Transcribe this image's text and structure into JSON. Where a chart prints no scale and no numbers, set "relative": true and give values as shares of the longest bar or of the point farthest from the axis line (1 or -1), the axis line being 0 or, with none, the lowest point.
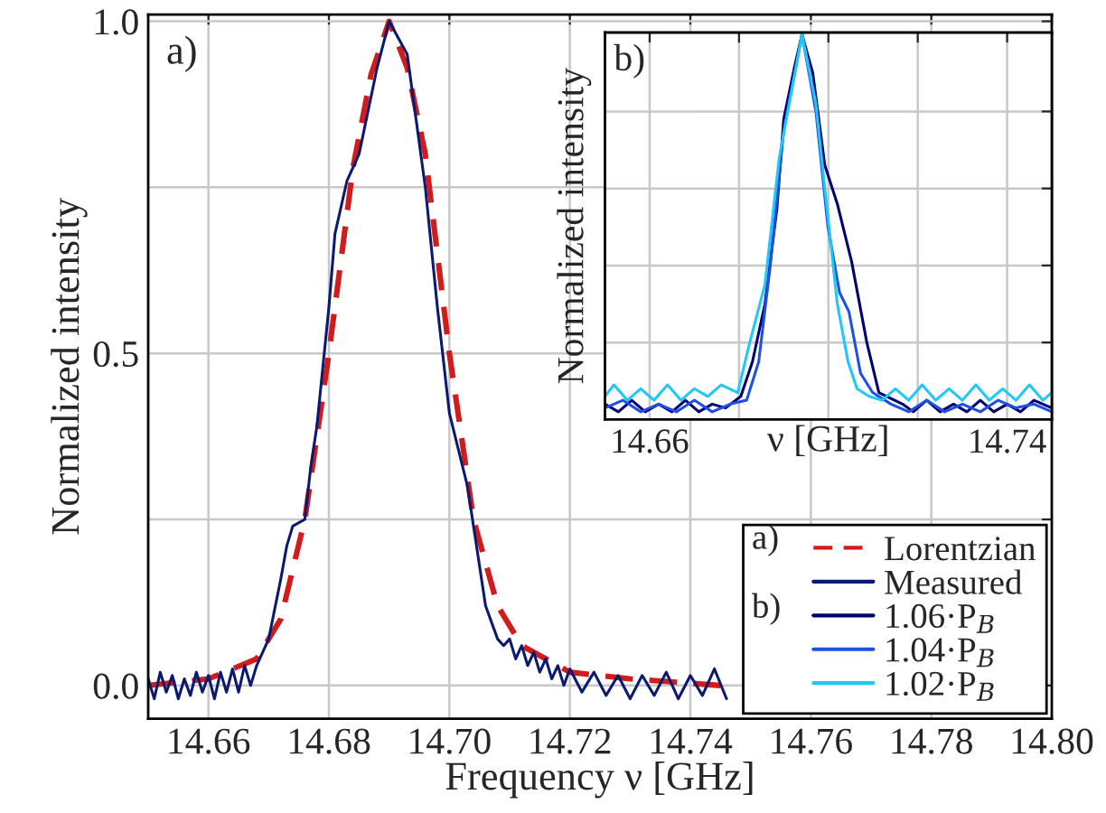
{
  "chart_data": [
    {
      "type": "line",
      "xlabel": "Frequency ν [GHz]",
      "ylabel": "Normalized intensity",
      "legend_title": "a)",
      "annotations": [
        "a)"
      ],
      "xlim": [
        14.65,
        14.8
      ],
      "xticks": [
        14.66,
        14.68,
        {
          "value": 14.7,
          "label": "14.70"
        },
        14.72,
        14.74,
        14.76,
        14.78,
        {
          "value": 14.8,
          "label": "14.80"
        }
      ],
      "ylim": [
        -0.05,
        1.01
      ],
      "yticks": [
        {
          "value": 0,
          "label": "0.0"
        },
        {
          "value": 0.25,
          "label": null
        },
        {
          "value": 0.5,
          "label": "0.5"
        },
        {
          "value": 0.75,
          "label": null
        },
        {
          "value": 1,
          "label": "1.0"
        }
      ],
      "grid": true,
      "legend": "bottom right",
      "series": [
        {
          "name": "Lorentzian",
          "color": "#d01c1c",
          "line_style": "dashed",
          "x": [
            14.65,
            14.66,
            14.668,
            14.672,
            14.676,
            14.68,
            14.684,
            14.687,
            14.69,
            14.693,
            14.696,
            14.7,
            14.704,
            14.708,
            14.712,
            14.72,
            14.73,
            14.745
          ],
          "values": [
            0.0,
            0.01,
            0.04,
            0.1,
            0.25,
            0.5,
            0.78,
            0.92,
            1.0,
            0.93,
            0.8,
            0.5,
            0.25,
            0.12,
            0.06,
            0.02,
            0.01,
            0.0
          ]
        },
        {
          "name": "Measured",
          "color": "#0b1a6e",
          "line_style": "solid",
          "x": [
            14.65,
            14.651,
            14.652,
            14.653,
            14.654,
            14.655,
            14.656,
            14.657,
            14.658,
            14.659,
            14.66,
            14.661,
            14.662,
            14.663,
            14.664,
            14.665,
            14.666,
            14.667,
            14.668,
            14.67,
            14.672,
            14.673,
            14.674,
            14.676,
            14.677,
            14.678,
            14.68,
            14.681,
            14.683,
            14.685,
            14.688,
            14.69,
            14.693,
            14.696,
            14.698,
            14.7,
            14.703,
            14.706,
            14.708,
            14.709,
            14.71,
            14.711,
            14.712,
            14.713,
            14.714,
            14.715,
            14.716,
            14.717,
            14.718,
            14.719,
            14.72,
            14.722,
            14.724,
            14.726,
            14.728,
            14.73,
            14.732,
            14.734,
            14.736,
            14.738,
            14.74,
            14.742,
            14.744,
            14.746
          ],
          "values": [
            0.01,
            -0.02,
            0.02,
            -0.01,
            0.015,
            -0.02,
            0.01,
            -0.015,
            0.02,
            -0.01,
            0.015,
            -0.02,
            0.02,
            -0.01,
            0.025,
            -0.01,
            0.03,
            0.0,
            0.03,
            0.07,
            0.16,
            0.21,
            0.24,
            0.25,
            0.33,
            0.39,
            0.57,
            0.68,
            0.76,
            0.8,
            0.93,
            1.0,
            0.95,
            0.75,
            0.57,
            0.41,
            0.3,
            0.12,
            0.07,
            0.06,
            0.07,
            0.04,
            0.06,
            0.03,
            0.05,
            0.02,
            0.04,
            0.01,
            0.03,
            0.0,
            0.025,
            -0.01,
            0.02,
            -0.015,
            0.015,
            -0.02,
            0.015,
            -0.015,
            0.02,
            -0.02,
            0.015,
            -0.015,
            0.025,
            -0.02
          ]
        }
      ]
    },
    {
      "type": "line",
      "xlabel": "ν [GHz]",
      "ylabel": "Normalized intensity",
      "legend_title": "b)",
      "annotations": [
        "b)"
      ],
      "relative": true,
      "xlim": [
        14.65,
        14.75
      ],
      "xticks": [
        14.66,
        {
          "value": 14.68,
          "label": null
        },
        {
          "value": 14.7,
          "label": null
        },
        {
          "value": 14.72,
          "label": null
        },
        14.74
      ],
      "grid": true,
      "legend": "bottom",
      "series": [
        {
          "name": "1.06·P$_{B}$",
          "color": "#000070",
          "x": [
            14.65,
            14.653,
            14.656,
            14.659,
            14.662,
            14.665,
            14.668,
            14.671,
            14.674,
            14.677,
            14.6804,
            14.683,
            14.6858,
            14.6885,
            14.69,
            14.6925,
            14.6941,
            14.6965,
            14.6992,
            14.702,
            14.7052,
            14.7086,
            14.7113,
            14.7166,
            14.719,
            14.722,
            14.725,
            14.728,
            14.731,
            14.734,
            14.737,
            14.74,
            14.743,
            14.746,
            14.75
          ],
          "values": [
            0.04,
            0.02,
            0.05,
            0.02,
            0.04,
            0.02,
            0.05,
            0.02,
            0.04,
            0.03,
            0.06,
            0.15,
            0.3,
            0.55,
            0.78,
            0.92,
            1.0,
            0.9,
            0.66,
            0.56,
            0.41,
            0.2,
            0.07,
            0.04,
            0.02,
            0.05,
            0.02,
            0.04,
            0.02,
            0.05,
            0.02,
            0.04,
            0.02,
            0.05,
            0.03
          ]
        },
        {
          "name": "1.04·P$_{B}$",
          "color": "#1e50e6",
          "x": [
            14.65,
            14.654,
            14.658,
            14.662,
            14.666,
            14.67,
            14.674,
            14.678,
            14.6817,
            14.6844,
            14.687,
            14.69,
            14.6941,
            14.6972,
            14.6999,
            14.7025,
            14.7046,
            14.7072,
            14.7099,
            14.714,
            14.718,
            14.722,
            14.726,
            14.73,
            14.734,
            14.738,
            14.742,
            14.746,
            14.75
          ],
          "values": [
            0.03,
            0.05,
            0.02,
            0.04,
            0.02,
            0.05,
            0.02,
            0.04,
            0.05,
            0.15,
            0.4,
            0.75,
            1.0,
            0.8,
            0.5,
            0.33,
            0.28,
            0.12,
            0.07,
            0.04,
            0.02,
            0.05,
            0.02,
            0.04,
            0.02,
            0.05,
            0.03,
            0.04,
            0.02
          ]
        },
        {
          "name": "1.02·P$_{B}$",
          "color": "#20c8f5",
          "x": [
            14.65,
            14.652,
            14.655,
            14.658,
            14.661,
            14.664,
            14.667,
            14.67,
            14.673,
            14.676,
            14.6797,
            14.6824,
            14.6858,
            14.689,
            14.6941,
            14.6972,
            14.6992,
            14.702,
            14.7044,
            14.7064,
            14.7091,
            14.712,
            14.715,
            14.718,
            14.721,
            14.724,
            14.727,
            14.73,
            14.733,
            14.736,
            14.739,
            14.742,
            14.745,
            14.748,
            14.75
          ],
          "values": [
            0.06,
            0.09,
            0.05,
            0.08,
            0.05,
            0.09,
            0.05,
            0.08,
            0.06,
            0.09,
            0.07,
            0.2,
            0.35,
            0.68,
            1.0,
            0.82,
            0.6,
            0.3,
            0.15,
            0.08,
            0.06,
            0.05,
            0.08,
            0.05,
            0.09,
            0.05,
            0.08,
            0.05,
            0.09,
            0.05,
            0.08,
            0.05,
            0.09,
            0.05,
            0.07
          ]
        }
      ]
    }
  ]
}
